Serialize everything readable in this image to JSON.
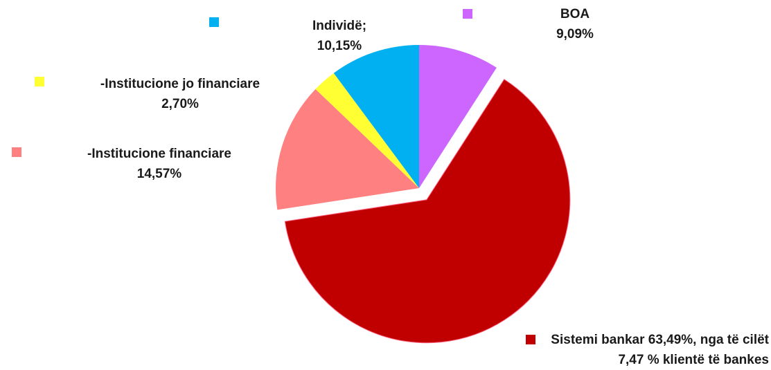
{
  "chart_data": {
    "type": "pie",
    "title": "",
    "slices": [
      {
        "name": "BOA",
        "value": 9.09,
        "value_label": "9,09%",
        "color": "#cc66ff",
        "exploded": false
      },
      {
        "name": "Sistemi bankar 63,49%, nga të cilët 7,47 % klientë të bankes",
        "value": 63.49,
        "value_label": "",
        "color": "#c00000",
        "exploded": true
      },
      {
        "name": "-Institucione financiare",
        "value": 14.57,
        "value_label": "14,57%",
        "color": "#ff8080",
        "exploded": false
      },
      {
        "name": "-Institucione jo financiare",
        "value": 2.7,
        "value_label": "2,70%",
        "color": "#ffff33",
        "exploded": false
      },
      {
        "name": "Individë;",
        "value": 10.15,
        "value_label": "10,15%",
        "color": "#00b0f0",
        "exploded": false
      }
    ]
  }
}
